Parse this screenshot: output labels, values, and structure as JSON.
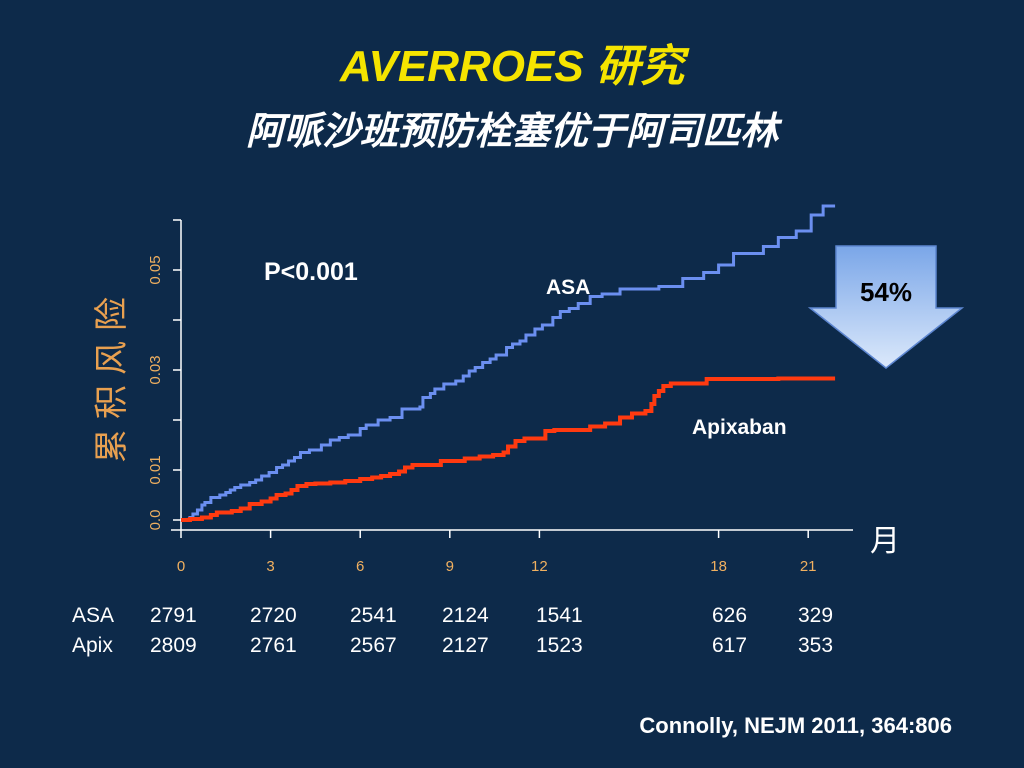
{
  "slide": {
    "title": "AVERROES 研究",
    "subtitle": "阿哌沙班预防栓塞优于阿司匹林",
    "citation": "Connolly, NEJM 2011, 364:806"
  },
  "colors": {
    "background": "#0d2a4a",
    "title": "#f5e400",
    "asa_line": "#6b8ff0",
    "apixaban_line": "#ff3a10",
    "axis_tick_labels": "#f0b060",
    "arrow_fill": "#a8c8f4"
  },
  "chart_data": {
    "type": "line",
    "step": true,
    "ylabel": "累积风险",
    "xunit": "月",
    "xlim": [
      0,
      22.5
    ],
    "ylim": [
      0,
      0.06
    ],
    "x_ticks": [
      0,
      3,
      6,
      9,
      12,
      18,
      21
    ],
    "x_tick_labels": [
      "0",
      "3",
      "6",
      "9",
      "12",
      "18",
      "21"
    ],
    "y_ticks": [
      0.0,
      0.01,
      0.02,
      0.03,
      0.04,
      0.05,
      0.06
    ],
    "y_tick_labels": [
      "0.0",
      "0.01",
      "",
      "0.03",
      "",
      "0.05",
      ""
    ],
    "annotation_p": "P<0.001",
    "reduction": {
      "label": "54%",
      "icon": "down-arrow-icon"
    },
    "series": [
      {
        "name": "ASA",
        "points": [
          [
            0,
            0
          ],
          [
            0.3,
            0.0005
          ],
          [
            0.4,
            0.0012
          ],
          [
            0.55,
            0.002
          ],
          [
            0.7,
            0.003
          ],
          [
            0.8,
            0.0035
          ],
          [
            1.0,
            0.0045
          ],
          [
            1.3,
            0.005
          ],
          [
            1.5,
            0.0055
          ],
          [
            1.65,
            0.006
          ],
          [
            1.8,
            0.0065
          ],
          [
            2.0,
            0.007
          ],
          [
            2.3,
            0.0075
          ],
          [
            2.5,
            0.008
          ],
          [
            2.7,
            0.0088
          ],
          [
            2.95,
            0.0095
          ],
          [
            3.2,
            0.0105
          ],
          [
            3.4,
            0.011
          ],
          [
            3.6,
            0.0118
          ],
          [
            3.8,
            0.0125
          ],
          [
            4.0,
            0.0135
          ],
          [
            4.3,
            0.014
          ],
          [
            4.7,
            0.015
          ],
          [
            5.0,
            0.016
          ],
          [
            5.3,
            0.0165
          ],
          [
            5.6,
            0.017
          ],
          [
            6.0,
            0.0183
          ],
          [
            6.2,
            0.019
          ],
          [
            6.6,
            0.02
          ],
          [
            7.0,
            0.0205
          ],
          [
            7.4,
            0.0222
          ],
          [
            8.0,
            0.0226
          ],
          [
            8.1,
            0.0245
          ],
          [
            8.35,
            0.0253
          ],
          [
            8.5,
            0.0262
          ],
          [
            8.8,
            0.0272
          ],
          [
            9.2,
            0.0278
          ],
          [
            9.45,
            0.0288
          ],
          [
            9.65,
            0.0298
          ],
          [
            9.85,
            0.0305
          ],
          [
            10.1,
            0.0315
          ],
          [
            10.35,
            0.0322
          ],
          [
            10.55,
            0.033
          ],
          [
            10.9,
            0.0345
          ],
          [
            11.1,
            0.0352
          ],
          [
            11.35,
            0.0358
          ],
          [
            11.55,
            0.037
          ],
          [
            11.85,
            0.0382
          ],
          [
            12.1,
            0.039
          ],
          [
            12.45,
            0.0405
          ],
          [
            12.7,
            0.0417
          ],
          [
            13.0,
            0.0423
          ],
          [
            13.3,
            0.0433
          ],
          [
            13.7,
            0.0447
          ],
          [
            14.1,
            0.0452
          ],
          [
            14.7,
            0.0462
          ],
          [
            16.0,
            0.0467
          ],
          [
            16.8,
            0.0483
          ],
          [
            17.5,
            0.0495
          ],
          [
            18.0,
            0.051
          ],
          [
            18.5,
            0.0533
          ],
          [
            19.5,
            0.0547
          ],
          [
            20.0,
            0.0565
          ],
          [
            20.6,
            0.0578
          ],
          [
            21.1,
            0.061
          ],
          [
            21.5,
            0.0628
          ],
          [
            21.9,
            0.0628
          ]
        ]
      },
      {
        "name": "Apixaban",
        "points": [
          [
            0,
            0
          ],
          [
            0.3,
            0.0002
          ],
          [
            0.7,
            0.0005
          ],
          [
            1.0,
            0.001
          ],
          [
            1.2,
            0.0015
          ],
          [
            1.7,
            0.0018
          ],
          [
            2.0,
            0.0023
          ],
          [
            2.3,
            0.0032
          ],
          [
            2.7,
            0.0037
          ],
          [
            3.0,
            0.0043
          ],
          [
            3.2,
            0.005
          ],
          [
            3.5,
            0.0053
          ],
          [
            3.7,
            0.006
          ],
          [
            3.9,
            0.0068
          ],
          [
            4.2,
            0.0072
          ],
          [
            4.5,
            0.0073
          ],
          [
            5.0,
            0.0075
          ],
          [
            5.5,
            0.0078
          ],
          [
            6.0,
            0.0082
          ],
          [
            6.4,
            0.0085
          ],
          [
            6.7,
            0.0088
          ],
          [
            7.0,
            0.0092
          ],
          [
            7.3,
            0.0097
          ],
          [
            7.5,
            0.0105
          ],
          [
            7.75,
            0.011
          ],
          [
            8.7,
            0.0118
          ],
          [
            9.5,
            0.0123
          ],
          [
            10.0,
            0.0127
          ],
          [
            10.45,
            0.013
          ],
          [
            10.8,
            0.0135
          ],
          [
            10.95,
            0.0147
          ],
          [
            11.2,
            0.0158
          ],
          [
            11.5,
            0.0163
          ],
          [
            12.2,
            0.0178
          ],
          [
            12.5,
            0.018
          ],
          [
            13.7,
            0.0187
          ],
          [
            14.2,
            0.0193
          ],
          [
            14.7,
            0.0205
          ],
          [
            15.1,
            0.0213
          ],
          [
            15.55,
            0.0218
          ],
          [
            15.75,
            0.0232
          ],
          [
            15.85,
            0.0248
          ],
          [
            16.0,
            0.0258
          ],
          [
            16.15,
            0.0268
          ],
          [
            16.4,
            0.0273
          ],
          [
            17.6,
            0.0282
          ],
          [
            20.0,
            0.0283
          ],
          [
            21.9,
            0.0283
          ]
        ]
      }
    ],
    "number_at_risk": {
      "x": [
        0,
        3,
        6,
        9,
        12,
        18,
        21
      ],
      "rows": [
        {
          "label": "ASA",
          "values": [
            "2791",
            "2720",
            "2541",
            "2124",
            "1541",
            "626",
            "329"
          ]
        },
        {
          "label": "Apix",
          "values": [
            "2809",
            "2761",
            "2567",
            "2127",
            "1523",
            "617",
            "353"
          ]
        }
      ]
    }
  }
}
